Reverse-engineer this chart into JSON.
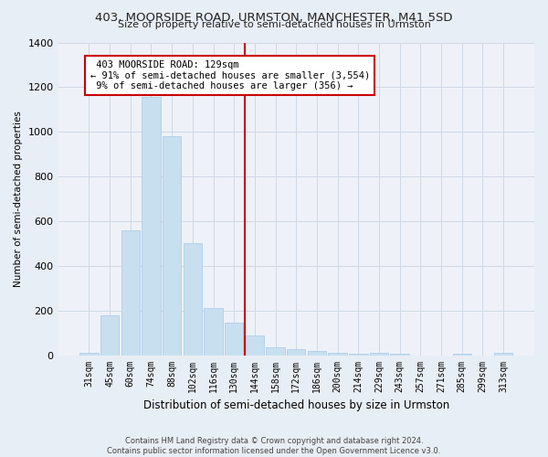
{
  "title": "403, MOORSIDE ROAD, URMSTON, MANCHESTER, M41 5SD",
  "subtitle": "Size of property relative to semi-detached houses in Urmston",
  "xlabel": "Distribution of semi-detached houses by size in Urmston",
  "ylabel": "Number of semi-detached properties",
  "footer_line1": "Contains HM Land Registry data © Crown copyright and database right 2024.",
  "footer_line2": "Contains public sector information licensed under the Open Government Licence v3.0.",
  "categories": [
    "31sqm",
    "45sqm",
    "60sqm",
    "74sqm",
    "88sqm",
    "102sqm",
    "116sqm",
    "130sqm",
    "144sqm",
    "158sqm",
    "172sqm",
    "186sqm",
    "200sqm",
    "214sqm",
    "229sqm",
    "243sqm",
    "257sqm",
    "271sqm",
    "285sqm",
    "299sqm",
    "313sqm"
  ],
  "values": [
    10,
    180,
    560,
    1155,
    980,
    500,
    210,
    145,
    90,
    35,
    25,
    20,
    10,
    5,
    10,
    5,
    0,
    0,
    5,
    0,
    10
  ],
  "bar_color": "#c8dff0",
  "bar_edge_color": "#a8c8e8",
  "property_label": "403 MOORSIDE ROAD: 129sqm",
  "pct_smaller": 91,
  "n_smaller": 3554,
  "pct_larger": 9,
  "n_larger": 356,
  "vline_color": "#cc0000",
  "vline_position": 7.5,
  "annotation_box_color": "#cc0000",
  "ylim": [
    0,
    1400
  ],
  "yticks": [
    0,
    200,
    400,
    600,
    800,
    1000,
    1200,
    1400
  ],
  "grid_color": "#d0d8e4",
  "bg_color": "#e8eef5",
  "plot_bg_color": "#eef2f8"
}
